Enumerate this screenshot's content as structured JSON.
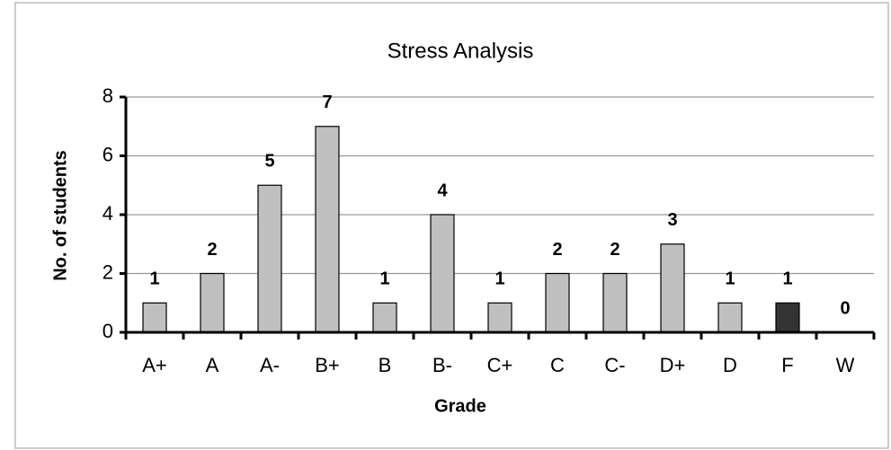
{
  "chart_data": {
    "type": "bar",
    "title": "Stress Analysis",
    "x_label": "Grade",
    "y_label": "No. of students",
    "categories": [
      "A+",
      "A",
      "A-",
      "B+",
      "B",
      "B-",
      "C+",
      "C",
      "C-",
      "D+",
      "D",
      "F",
      "W"
    ],
    "values": [
      1,
      2,
      5,
      7,
      1,
      4,
      1,
      2,
      2,
      3,
      1,
      1,
      0
    ],
    "colors": [
      "#c0c0c0",
      "#c0c0c0",
      "#c0c0c0",
      "#c0c0c0",
      "#c0c0c0",
      "#c0c0c0",
      "#c0c0c0",
      "#c0c0c0",
      "#c0c0c0",
      "#c0c0c0",
      "#c0c0c0",
      "#333333",
      "#c0c0c0"
    ],
    "ylim": [
      0,
      8
    ],
    "yticks": [
      0,
      2,
      4,
      6,
      8
    ],
    "grid": true
  }
}
